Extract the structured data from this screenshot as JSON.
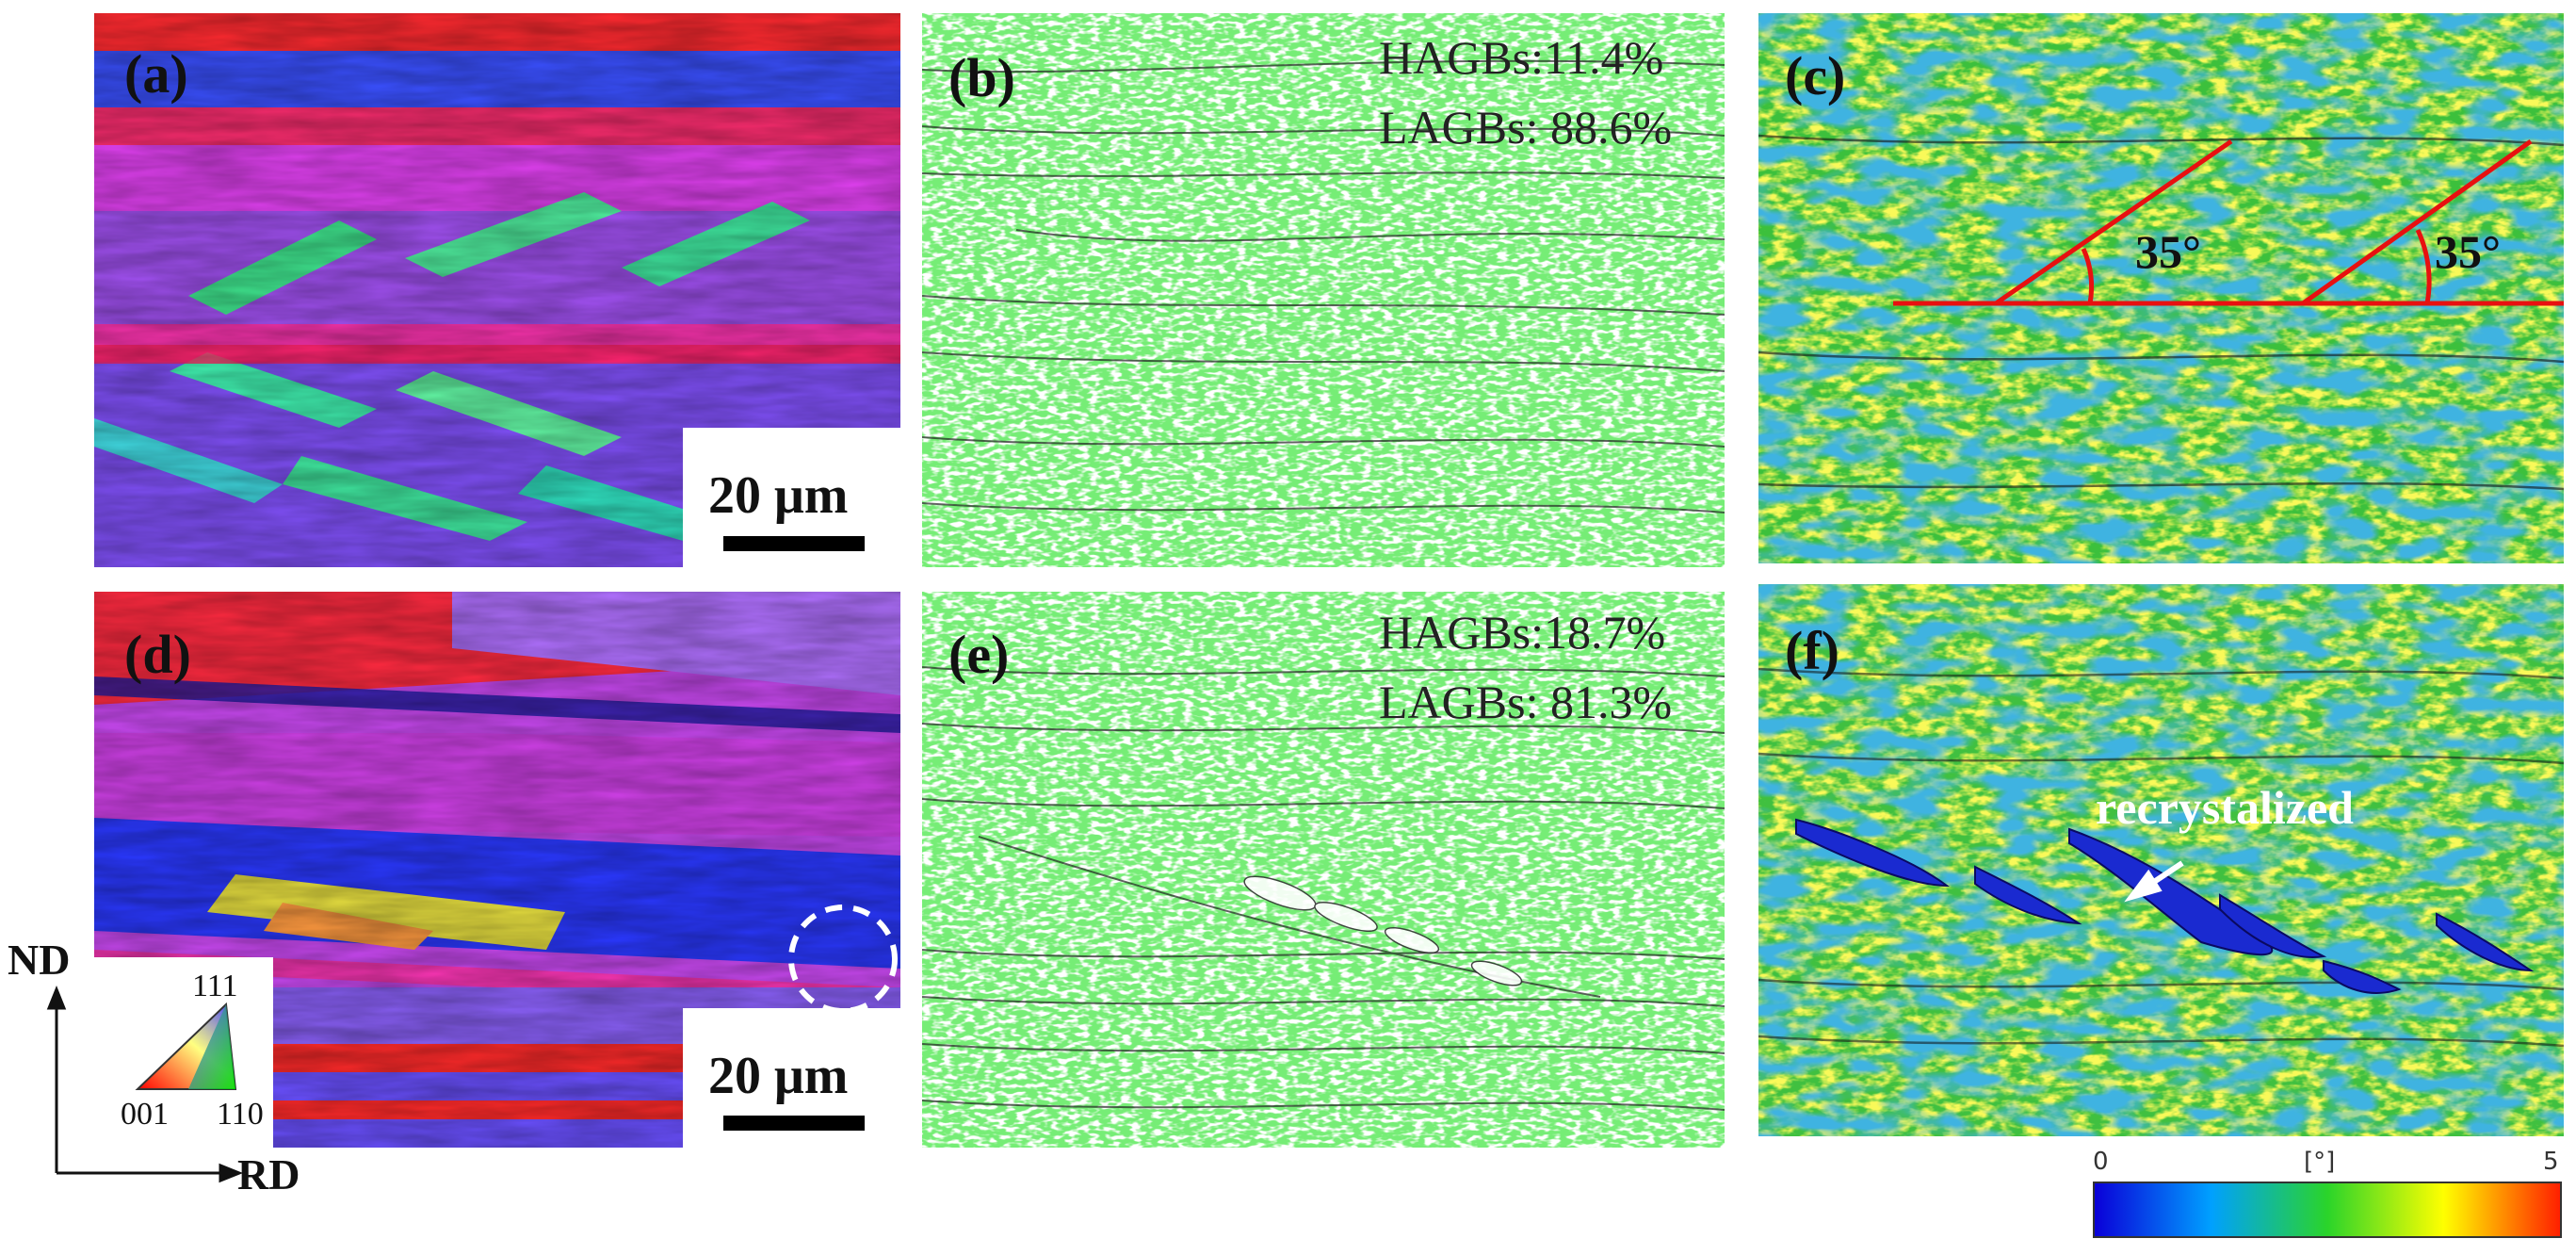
{
  "figure": {
    "panels": [
      {
        "id": "a",
        "label": "(a)",
        "kind": "ipf-map"
      },
      {
        "id": "b",
        "label": "(b)",
        "kind": "grain-boundary-map",
        "hagb": "HAGBs:11.4%",
        "lagb": "LAGBs: 88.6%"
      },
      {
        "id": "c",
        "label": "(c)",
        "kind": "kam-map",
        "angles": [
          "35°",
          "35°"
        ]
      },
      {
        "id": "d",
        "label": "(d)",
        "kind": "ipf-map"
      },
      {
        "id": "e",
        "label": "(e)",
        "kind": "grain-boundary-map",
        "hagb": "HAGBs:18.7%",
        "lagb": "LAGBs: 81.3%"
      },
      {
        "id": "f",
        "label": "(f)",
        "kind": "kam-map",
        "annotation": "recrystalized"
      }
    ],
    "scale_bar": "20 μm",
    "axes": {
      "vertical": "ND",
      "horizontal": "RD"
    },
    "ipf_legend": {
      "top": "111",
      "left": "001",
      "right": "110"
    },
    "colorbar": {
      "min": "0",
      "unit": "[°]",
      "max": "5",
      "colors": [
        "#0a00d8",
        "#00a0ff",
        "#2ad42a",
        "#ffff00",
        "#ff2000"
      ]
    }
  }
}
